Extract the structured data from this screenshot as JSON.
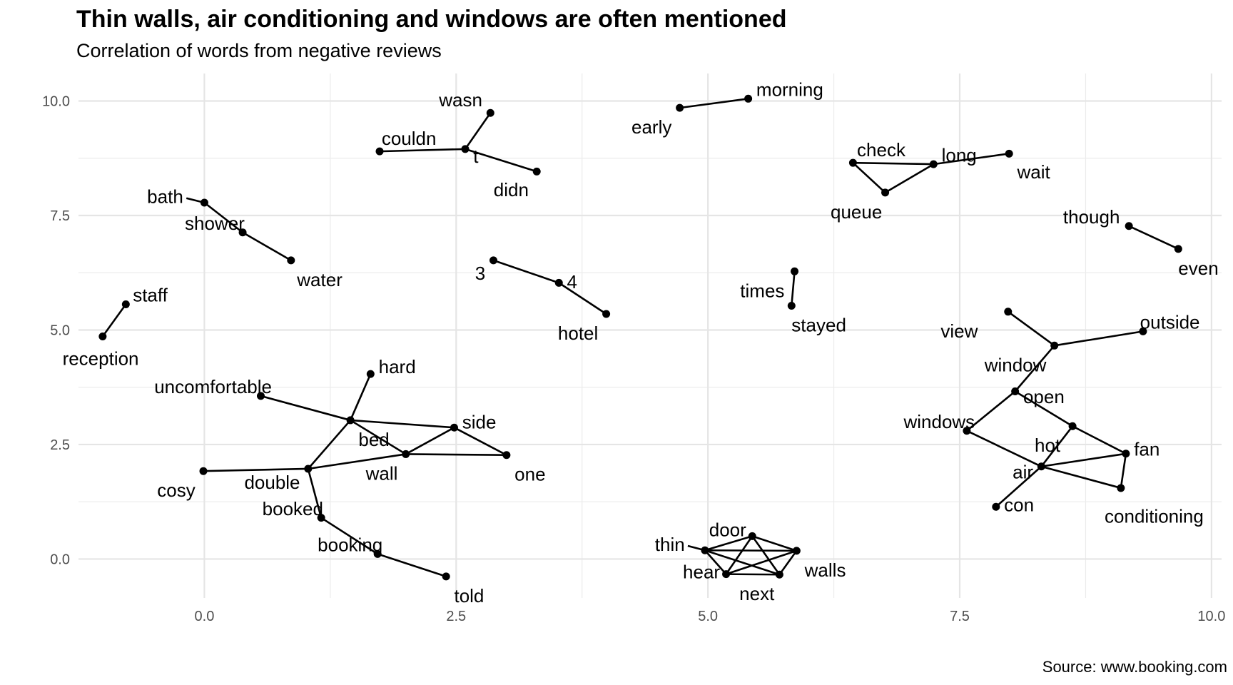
{
  "title": "Thin walls, air conditioning and windows are often mentioned",
  "subtitle": "Correlation of words from negative reviews",
  "caption": "Source: www.booking.com",
  "chart_data": {
    "type": "network",
    "xlim": [
      -1.25,
      10.1
    ],
    "ylim": [
      -0.85,
      10.6
    ],
    "x_ticks": [
      0,
      2.5,
      5,
      7.5,
      10
    ],
    "x_tick_labels": [
      "0.0",
      "2.5",
      "5.0",
      "7.5",
      "10.0"
    ],
    "y_ticks": [
      0,
      2.5,
      5,
      7.5,
      10
    ],
    "y_tick_labels": [
      "0.0",
      "2.5",
      "5.0",
      "7.5",
      "10.0"
    ],
    "grid": true,
    "nodes": [
      {
        "id": "wasn",
        "x": 2.84,
        "y": 9.74,
        "label": "wasn",
        "anchor": "end",
        "dx": -0.08,
        "dy": 0.28
      },
      {
        "id": "couldn",
        "x": 1.74,
        "y": 8.9,
        "label": "couldn",
        "anchor": "start",
        "dx": 0.02,
        "dy": 0.28
      },
      {
        "id": "t",
        "x": 2.59,
        "y": 8.95,
        "label": "t",
        "anchor": "start",
        "dx": 0.08,
        "dy": -0.16
      },
      {
        "id": "didn",
        "x": 3.3,
        "y": 8.46,
        "label": "didn",
        "anchor": "end",
        "dx": -0.08,
        "dy": -0.4
      },
      {
        "id": "early",
        "x": 4.72,
        "y": 9.85,
        "label": "early",
        "anchor": "end",
        "dx": -0.08,
        "dy": -0.42
      },
      {
        "id": "morning",
        "x": 5.4,
        "y": 10.05,
        "label": "morning",
        "anchor": "start",
        "dx": 0.08,
        "dy": 0.2
      },
      {
        "id": "check",
        "x": 6.44,
        "y": 8.65,
        "label": "check",
        "anchor": "start",
        "dx": 0.04,
        "dy": 0.28
      },
      {
        "id": "long",
        "x": 7.24,
        "y": 8.62,
        "label": "long",
        "anchor": "start",
        "dx": 0.08,
        "dy": 0.2
      },
      {
        "id": "wait",
        "x": 7.99,
        "y": 8.85,
        "label": "wait",
        "anchor": "start",
        "dx": 0.08,
        "dy": -0.4
      },
      {
        "id": "queue",
        "x": 6.76,
        "y": 8.0,
        "label": "queue",
        "anchor": "end",
        "dx": -0.03,
        "dy": -0.42
      },
      {
        "id": "bath",
        "x": 0.0,
        "y": 7.78,
        "label": "bath",
        "anchor": "end",
        "dx": -0.21,
        "dy": 0.13
      },
      {
        "id": "shower",
        "x": 0.38,
        "y": 7.13,
        "label": "shower",
        "anchor": "end",
        "dx": 0.02,
        "dy": 0.2
      },
      {
        "id": "water",
        "x": 0.86,
        "y": 6.52,
        "label": "water",
        "anchor": "start",
        "dx": 0.06,
        "dy": -0.42
      },
      {
        "id": "though",
        "x": 9.18,
        "y": 7.27,
        "label": "though",
        "anchor": "end",
        "dx": -0.09,
        "dy": 0.2
      },
      {
        "id": "even",
        "x": 9.67,
        "y": 6.77,
        "label": "even",
        "anchor": "start",
        "dx": 0.0,
        "dy": -0.42
      },
      {
        "id": "n3",
        "x": 2.87,
        "y": 6.52,
        "label": "3",
        "anchor": "end",
        "dx": -0.08,
        "dy": -0.28
      },
      {
        "id": "n4",
        "x": 3.52,
        "y": 6.03,
        "label": "4",
        "anchor": "start",
        "dx": 0.08,
        "dy": 0.02
      },
      {
        "id": "hotel",
        "x": 3.99,
        "y": 5.35,
        "label": "hotel",
        "anchor": "end",
        "dx": -0.08,
        "dy": -0.42
      },
      {
        "id": "times",
        "x": 5.86,
        "y": 6.28,
        "label": "times",
        "anchor": "end",
        "dx": -0.1,
        "dy": -0.42
      },
      {
        "id": "stayed",
        "x": 5.83,
        "y": 5.53,
        "label": "stayed",
        "anchor": "start",
        "dx": 0.0,
        "dy": -0.42
      },
      {
        "id": "staff",
        "x": -0.78,
        "y": 5.56,
        "label": "staff",
        "anchor": "start",
        "dx": 0.07,
        "dy": 0.2
      },
      {
        "id": "reception",
        "x": -1.01,
        "y": 4.86,
        "label": "reception",
        "anchor": "middle",
        "dx": -0.02,
        "dy": -0.48
      },
      {
        "id": "view",
        "x": 7.98,
        "y": 5.4,
        "label": "view",
        "anchor": "end",
        "dx": -0.3,
        "dy": -0.42
      },
      {
        "id": "outside",
        "x": 9.32,
        "y": 4.97,
        "label": "outside",
        "anchor": "start",
        "dx": -0.03,
        "dy": 0.2
      },
      {
        "id": "window",
        "x": 8.44,
        "y": 4.66,
        "label": "window",
        "anchor": "end",
        "dx": -0.08,
        "dy": -0.42
      },
      {
        "id": "open",
        "x": 8.05,
        "y": 3.66,
        "label": "open",
        "anchor": "start",
        "dx": 0.08,
        "dy": -0.12
      },
      {
        "id": "windows",
        "x": 7.57,
        "y": 2.8,
        "label": "windows",
        "anchor": "end",
        "dx": 0.08,
        "dy": 0.2
      },
      {
        "id": "hot",
        "x": 8.62,
        "y": 2.9,
        "label": "hot",
        "anchor": "end",
        "dx": -0.12,
        "dy": -0.42
      },
      {
        "id": "fan",
        "x": 9.15,
        "y": 2.3,
        "label": "fan",
        "anchor": "start",
        "dx": 0.08,
        "dy": 0.1
      },
      {
        "id": "air",
        "x": 8.31,
        "y": 2.02,
        "label": "air",
        "anchor": "end",
        "dx": -0.08,
        "dy": -0.12
      },
      {
        "id": "conditioning",
        "x": 9.1,
        "y": 1.55,
        "label": "conditioning",
        "anchor": "middle",
        "dx": 0.33,
        "dy": -0.62
      },
      {
        "id": "con",
        "x": 7.86,
        "y": 1.14,
        "label": "con",
        "anchor": "start",
        "dx": 0.08,
        "dy": 0.04
      },
      {
        "id": "hard",
        "x": 1.65,
        "y": 4.04,
        "label": "hard",
        "anchor": "start",
        "dx": 0.08,
        "dy": 0.16
      },
      {
        "id": "uncomfortable",
        "x": 0.56,
        "y": 3.56,
        "label": "uncomfortable",
        "anchor": "end",
        "dx": 0.11,
        "dy": 0.2
      },
      {
        "id": "bed",
        "x": 1.45,
        "y": 3.03,
        "label": "bed",
        "anchor": "start",
        "dx": 0.08,
        "dy": -0.42
      },
      {
        "id": "side",
        "x": 2.48,
        "y": 2.87,
        "label": "side",
        "anchor": "start",
        "dx": 0.08,
        "dy": 0.12
      },
      {
        "id": "wall",
        "x": 2.0,
        "y": 2.29,
        "label": "wall",
        "anchor": "end",
        "dx": -0.08,
        "dy": -0.42
      },
      {
        "id": "one",
        "x": 3.0,
        "y": 2.27,
        "label": "one",
        "anchor": "start",
        "dx": 0.08,
        "dy": -0.42
      },
      {
        "id": "cosy",
        "x": -0.01,
        "y": 1.92,
        "label": "cosy",
        "anchor": "end",
        "dx": -0.08,
        "dy": -0.42
      },
      {
        "id": "double",
        "x": 1.03,
        "y": 1.97,
        "label": "double",
        "anchor": "end",
        "dx": -0.08,
        "dy": -0.3
      },
      {
        "id": "booked",
        "x": 1.16,
        "y": 0.9,
        "label": "booked",
        "anchor": "end",
        "dx": 0.02,
        "dy": 0.2
      },
      {
        "id": "booking",
        "x": 1.72,
        "y": 0.11,
        "label": "booking",
        "anchor": "end",
        "dx": 0.05,
        "dy": 0.2
      },
      {
        "id": "told",
        "x": 2.4,
        "y": -0.38,
        "label": "told",
        "anchor": "start",
        "dx": 0.08,
        "dy": -0.42
      },
      {
        "id": "thin",
        "x": 4.97,
        "y": 0.19,
        "label": "thin",
        "anchor": "end",
        "dx": -0.2,
        "dy": 0.13
      },
      {
        "id": "door",
        "x": 5.44,
        "y": 0.5,
        "label": "door",
        "anchor": "end",
        "dx": -0.06,
        "dy": 0.14
      },
      {
        "id": "walls",
        "x": 5.88,
        "y": 0.18,
        "label": "walls",
        "anchor": "start",
        "dx": 0.08,
        "dy": -0.42
      },
      {
        "id": "hear",
        "x": 5.18,
        "y": -0.33,
        "label": "hear",
        "anchor": "end",
        "dx": -0.06,
        "dy": 0.05
      },
      {
        "id": "next",
        "x": 5.71,
        "y": -0.34,
        "label": "next",
        "anchor": "end",
        "dx": -0.05,
        "dy": -0.42
      }
    ],
    "edges": [
      [
        "wasn",
        "t"
      ],
      [
        "couldn",
        "t"
      ],
      [
        "t",
        "didn"
      ],
      [
        "early",
        "morning"
      ],
      [
        "check",
        "long"
      ],
      [
        "check",
        "queue"
      ],
      [
        "queue",
        "long"
      ],
      [
        "long",
        "wait"
      ],
      [
        "bath",
        "shower"
      ],
      [
        "shower",
        "water"
      ],
      [
        "though",
        "even"
      ],
      [
        "n3",
        "n4"
      ],
      [
        "n4",
        "hotel"
      ],
      [
        "times",
        "stayed"
      ],
      [
        "staff",
        "reception"
      ],
      [
        "view",
        "window"
      ],
      [
        "window",
        "outside"
      ],
      [
        "window",
        "open"
      ],
      [
        "open",
        "windows"
      ],
      [
        "open",
        "hot"
      ],
      [
        "hot",
        "fan"
      ],
      [
        "hot",
        "air"
      ],
      [
        "windows",
        "air"
      ],
      [
        "air",
        "fan"
      ],
      [
        "air",
        "conditioning"
      ],
      [
        "conditioning",
        "fan"
      ],
      [
        "air",
        "con"
      ],
      [
        "hard",
        "bed"
      ],
      [
        "uncomfortable",
        "bed"
      ],
      [
        "bed",
        "side"
      ],
      [
        "bed",
        "wall"
      ],
      [
        "bed",
        "double"
      ],
      [
        "side",
        "wall"
      ],
      [
        "side",
        "one"
      ],
      [
        "wall",
        "one"
      ],
      [
        "wall",
        "double"
      ],
      [
        "cosy",
        "double"
      ],
      [
        "double",
        "booked"
      ],
      [
        "booked",
        "booking"
      ],
      [
        "booking",
        "told"
      ],
      [
        "thin",
        "door"
      ],
      [
        "thin",
        "walls"
      ],
      [
        "thin",
        "hear"
      ],
      [
        "thin",
        "next"
      ],
      [
        "door",
        "walls"
      ],
      [
        "door",
        "hear"
      ],
      [
        "door",
        "next"
      ],
      [
        "walls",
        "hear"
      ],
      [
        "walls",
        "next"
      ],
      [
        "hear",
        "next"
      ]
    ]
  }
}
